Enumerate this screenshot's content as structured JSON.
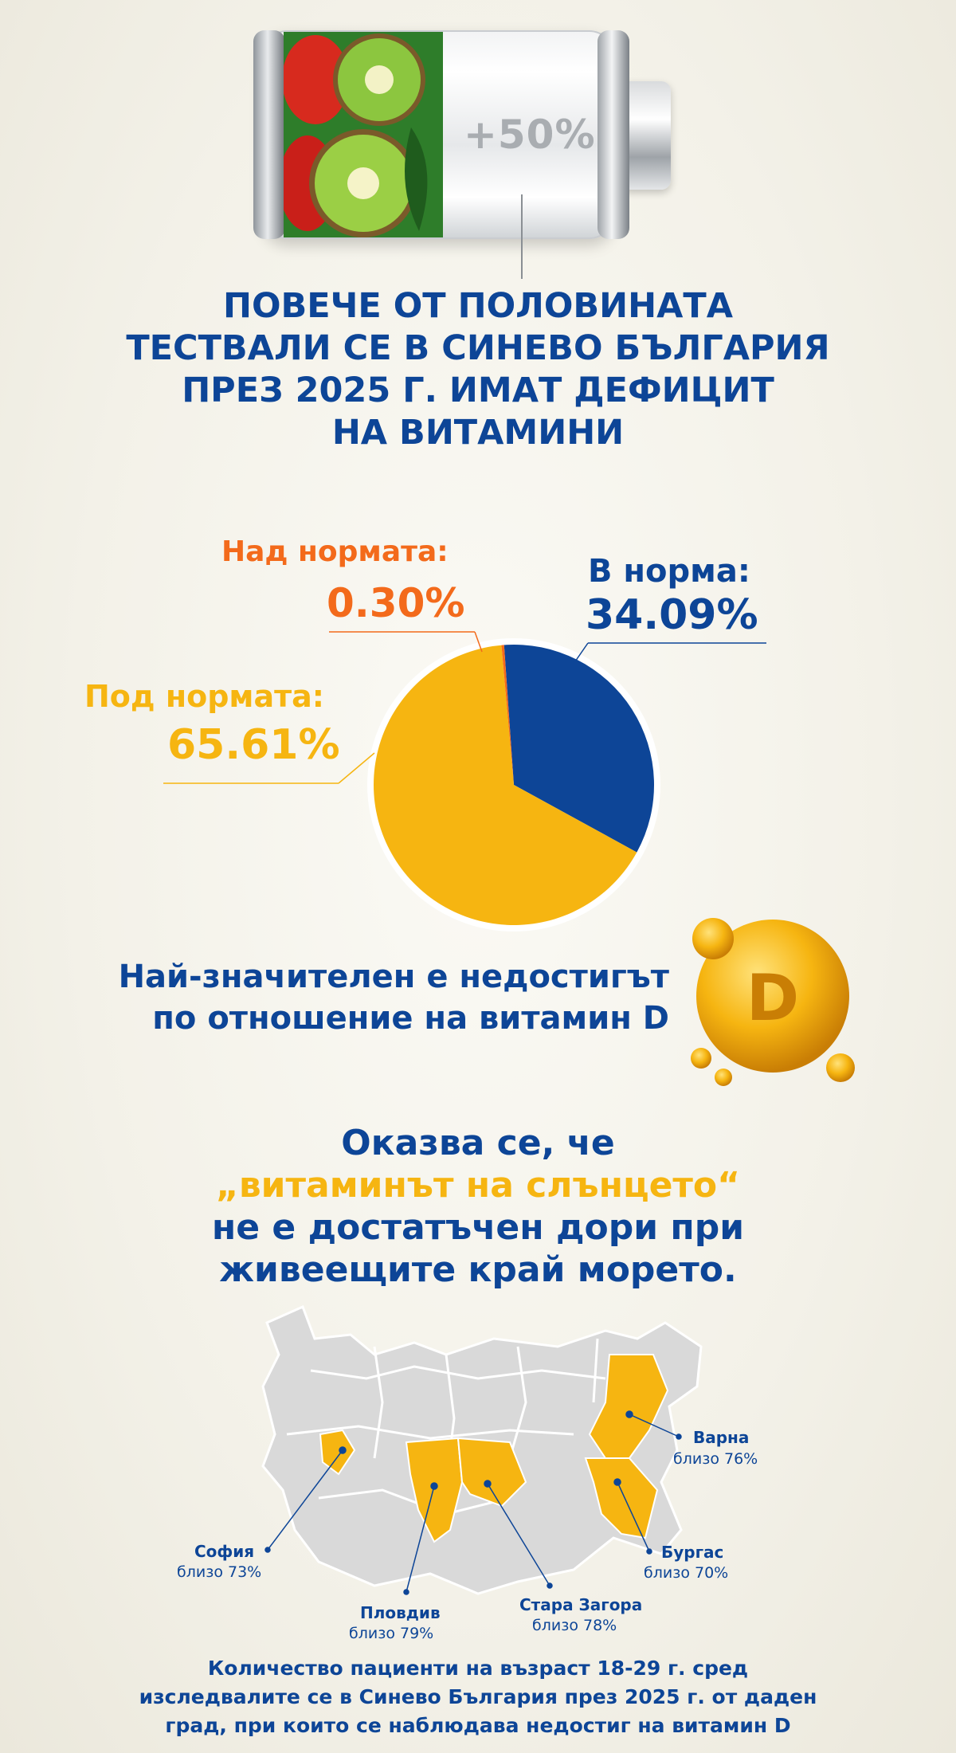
{
  "battery": {
    "label": "+50%"
  },
  "headline": {
    "lines": [
      "ПОВЕЧЕ ОТ ПОЛОВИНАТА",
      "ТЕСТВАЛИ СЕ В СИНЕВО БЪЛГАРИЯ",
      "ПРЕЗ 2025 Г. ИМАТ ДЕФИЦИТ",
      "НА ВИТАМИНИ"
    ]
  },
  "colors": {
    "blue": "#0d4597",
    "yellow": "#f6b511",
    "orange": "#f36a1b",
    "map_gray": "#d9d9d9"
  },
  "chart_data": {
    "type": "pie",
    "slices": [
      {
        "label": "В норма:",
        "value": 34.09,
        "display": "34.09%",
        "color": "#0d4597"
      },
      {
        "label": "Под нормата:",
        "value": 65.61,
        "display": "65.61%",
        "color": "#f6b511"
      },
      {
        "label": "Над нормата:",
        "value": 0.3,
        "display": "0.30%",
        "color": "#f36a1b"
      }
    ]
  },
  "vitamin_d": {
    "line1": "Най-значителен е недостигът",
    "line2": "по отношение на витамин D",
    "badge": "D"
  },
  "sun": {
    "line1": "Оказва се, че",
    "line2": "„витаминът на слънцето“",
    "line3": "не е достатъчен дори при",
    "line4": "живеещите край морето."
  },
  "map": {
    "cities": [
      {
        "name": "Варна",
        "value": "близо 76%"
      },
      {
        "name": "София",
        "value": "близо 73%"
      },
      {
        "name": "Бургас",
        "value": "близо 70%"
      },
      {
        "name": "Пловдив",
        "value": "близо 79%"
      },
      {
        "name": "Стара Загора",
        "value": "близо 78%"
      }
    ]
  },
  "footnote": {
    "lines": [
      "Количество пациенти на възраст 18-29 г. сред",
      "изследвалите се в Синево България през 2025 г. от даден",
      "град, при които се наблюдава недостиг на витамин D"
    ]
  }
}
